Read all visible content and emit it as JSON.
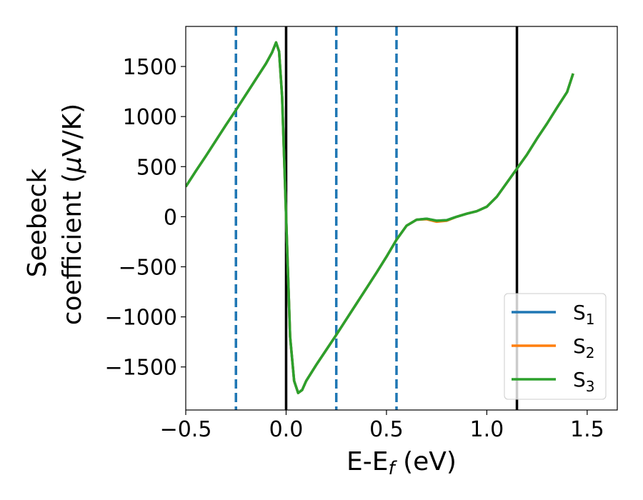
{
  "chart_data": {
    "type": "line",
    "title": "",
    "xlabel": {
      "main": "E-E",
      "sub": "f",
      "tail": " (eV)"
    },
    "ylabel": {
      "line1": "Seebeck",
      "line2_prefix": "coefficient  (",
      "mu": "μ",
      "line2_suffix": "V/K)"
    },
    "xlim": [
      -0.5,
      1.65
    ],
    "ylim": [
      -1930,
      1900
    ],
    "xticks": [
      -0.5,
      0.0,
      0.5,
      1.0,
      1.5
    ],
    "xtick_labels": [
      "−0.5",
      "0.0",
      "0.5",
      "1.0",
      "1.5"
    ],
    "yticks": [
      -1500,
      -1000,
      -500,
      0,
      500,
      1000,
      1500
    ],
    "ytick_labels": [
      "−1500",
      "−1000",
      "−500",
      "0",
      "500",
      "1000",
      "1500"
    ],
    "grid": false,
    "legend_position": "bottom-right",
    "vertical_lines": [
      {
        "x": -0.25,
        "style": "dashed",
        "color": "#1f77b4"
      },
      {
        "x": 0.0,
        "style": "solid",
        "color": "#000000"
      },
      {
        "x": 0.25,
        "style": "dashed",
        "color": "#1f77b4"
      },
      {
        "x": 0.55,
        "style": "dashed",
        "color": "#1f77b4"
      },
      {
        "x": 1.15,
        "style": "solid",
        "color": "#000000"
      }
    ],
    "series": [
      {
        "name": {
          "base": "S",
          "sub": "1"
        },
        "color": "#1f77b4",
        "x": [
          -0.5,
          -0.45,
          -0.4,
          -0.35,
          -0.3,
          -0.25,
          -0.2,
          -0.15,
          -0.1,
          -0.07,
          -0.05,
          -0.035,
          -0.02,
          -0.01,
          0.0,
          0.01,
          0.02,
          0.04,
          0.06,
          0.08,
          0.1,
          0.15,
          0.2,
          0.25,
          0.3,
          0.35,
          0.4,
          0.45,
          0.5,
          0.55,
          0.6,
          0.65,
          0.7,
          0.75,
          0.8,
          0.85,
          0.9,
          0.95,
          1.0,
          1.05,
          1.1,
          1.15,
          1.2,
          1.25,
          1.3,
          1.35,
          1.4,
          1.43
        ],
        "y": [
          300,
          455,
          605,
          760,
          915,
          1065,
          1220,
          1375,
          1530,
          1640,
          1740,
          1650,
          1200,
          600,
          0,
          -600,
          -1200,
          -1640,
          -1760,
          -1730,
          -1640,
          -1480,
          -1330,
          -1180,
          -1025,
          -870,
          -715,
          -560,
          -400,
          -230,
          -90,
          -30,
          -20,
          -40,
          -35,
          0,
          30,
          55,
          100,
          200,
          340,
          480,
          620,
          780,
          930,
          1090,
          1245,
          1430
        ]
      },
      {
        "name": {
          "base": "S",
          "sub": "2"
        },
        "color": "#ff7f0e",
        "x": [
          -0.5,
          -0.45,
          -0.4,
          -0.35,
          -0.3,
          -0.25,
          -0.2,
          -0.15,
          -0.1,
          -0.07,
          -0.05,
          -0.035,
          -0.02,
          -0.01,
          0.0,
          0.01,
          0.02,
          0.04,
          0.06,
          0.08,
          0.1,
          0.15,
          0.2,
          0.25,
          0.3,
          0.35,
          0.4,
          0.45,
          0.5,
          0.55,
          0.6,
          0.65,
          0.7,
          0.75,
          0.8,
          0.85,
          0.9,
          0.95,
          1.0,
          1.05,
          1.1,
          1.15,
          1.2,
          1.25,
          1.3,
          1.35,
          1.4,
          1.43
        ],
        "y": [
          300,
          455,
          605,
          760,
          915,
          1065,
          1220,
          1375,
          1530,
          1640,
          1740,
          1650,
          1200,
          600,
          0,
          -600,
          -1200,
          -1640,
          -1760,
          -1730,
          -1640,
          -1480,
          -1330,
          -1180,
          -1025,
          -870,
          -715,
          -560,
          -400,
          -230,
          -90,
          -30,
          -25,
          -50,
          -40,
          0,
          30,
          55,
          100,
          200,
          340,
          480,
          620,
          780,
          930,
          1090,
          1245,
          1430
        ]
      },
      {
        "name": {
          "base": "S",
          "sub": "3"
        },
        "color": "#2ca02c",
        "x": [
          -0.5,
          -0.45,
          -0.4,
          -0.35,
          -0.3,
          -0.25,
          -0.2,
          -0.15,
          -0.1,
          -0.07,
          -0.05,
          -0.035,
          -0.02,
          -0.01,
          0.0,
          0.01,
          0.02,
          0.04,
          0.06,
          0.08,
          0.1,
          0.15,
          0.2,
          0.25,
          0.3,
          0.35,
          0.4,
          0.45,
          0.5,
          0.55,
          0.6,
          0.65,
          0.7,
          0.75,
          0.8,
          0.85,
          0.9,
          0.95,
          1.0,
          1.05,
          1.1,
          1.15,
          1.2,
          1.25,
          1.3,
          1.35,
          1.4,
          1.43
        ],
        "y": [
          300,
          455,
          605,
          760,
          915,
          1065,
          1220,
          1375,
          1530,
          1640,
          1740,
          1650,
          1200,
          600,
          0,
          -600,
          -1200,
          -1640,
          -1760,
          -1730,
          -1640,
          -1480,
          -1330,
          -1180,
          -1025,
          -870,
          -715,
          -560,
          -400,
          -230,
          -90,
          -30,
          -20,
          -40,
          -35,
          0,
          30,
          55,
          100,
          200,
          340,
          480,
          620,
          780,
          930,
          1090,
          1245,
          1430
        ]
      }
    ]
  }
}
